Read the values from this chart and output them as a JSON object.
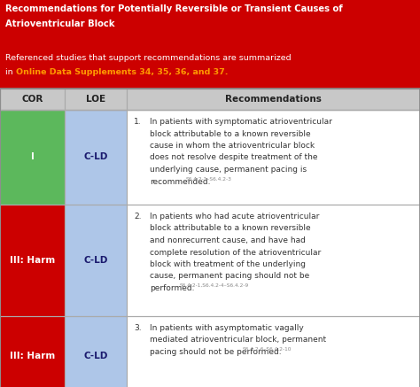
{
  "title_line1": "Recommendations for Potentially Reversible or Transient Causes of",
  "title_line2": "Atrioventricular Block",
  "subtitle_plain": "Referenced studies that support recommendations are summarized",
  "subtitle_link": "in Online Data Supplements 34, 35, 36, and 37.",
  "header_bg": "#c8c8c8",
  "title_bg": "#cc0000",
  "title_text_color": "#ffffff",
  "subtitle_text_color": "#ffffff",
  "link_color": "#ff9900",
  "col_headers": [
    "COR",
    "LOE",
    "Recommendations"
  ],
  "rows": [
    {
      "cor": "I",
      "loe": "C-LD",
      "cor_bg": "#5cb85c",
      "loe_bg": "#aec6e8",
      "rec_num": "1.",
      "rec_lines": [
        "In patients with symptomatic atrioventricular",
        "block attributable to a known reversible",
        "cause in whom the atrioventricular block",
        "does not resolve despite treatment of the",
        "underlying cause, permanent pacing is",
        "recommended."
      ],
      "superscript": "S6.4.2-1–S6.4.2-3",
      "rec_bg": "#ffffff"
    },
    {
      "cor": "III: Harm",
      "loe": "C-LD",
      "cor_bg": "#cc0000",
      "loe_bg": "#aec6e8",
      "rec_num": "2.",
      "rec_lines": [
        "In patients who had acute atrioventricular",
        "block attributable to a known reversible",
        "and nonrecurrent cause, and have had",
        "complete resolution of the atrioventricular",
        "block with treatment of the underlying",
        "cause, permanent pacing should not be",
        "performed."
      ],
      "superscript": "S6.4.2-1,S6.4.2-4–S6.4.2-9",
      "rec_bg": "#ffffff"
    },
    {
      "cor": "III: Harm",
      "loe": "C-LD",
      "cor_bg": "#cc0000",
      "loe_bg": "#aec6e8",
      "rec_num": "3.",
      "rec_lines": [
        "In patients with asymptomatic vagally",
        "mediated atrioventricular block, permanent",
        "pacing should not be performed."
      ],
      "superscript": "S6.4.2-6–S6.4.2-10",
      "rec_bg": "#ffffff"
    }
  ],
  "grid_color": "#aaaaaa",
  "cor_text_color": "#ffffff",
  "loe_text_color": "#1a1a6e",
  "rec_text_color": "#333333",
  "header_text_color": "#222222",
  "rec_fontsize": 6.5,
  "header_fontsize": 7.5,
  "title_fontsize": 7.2,
  "subtitle_fontsize": 6.8
}
